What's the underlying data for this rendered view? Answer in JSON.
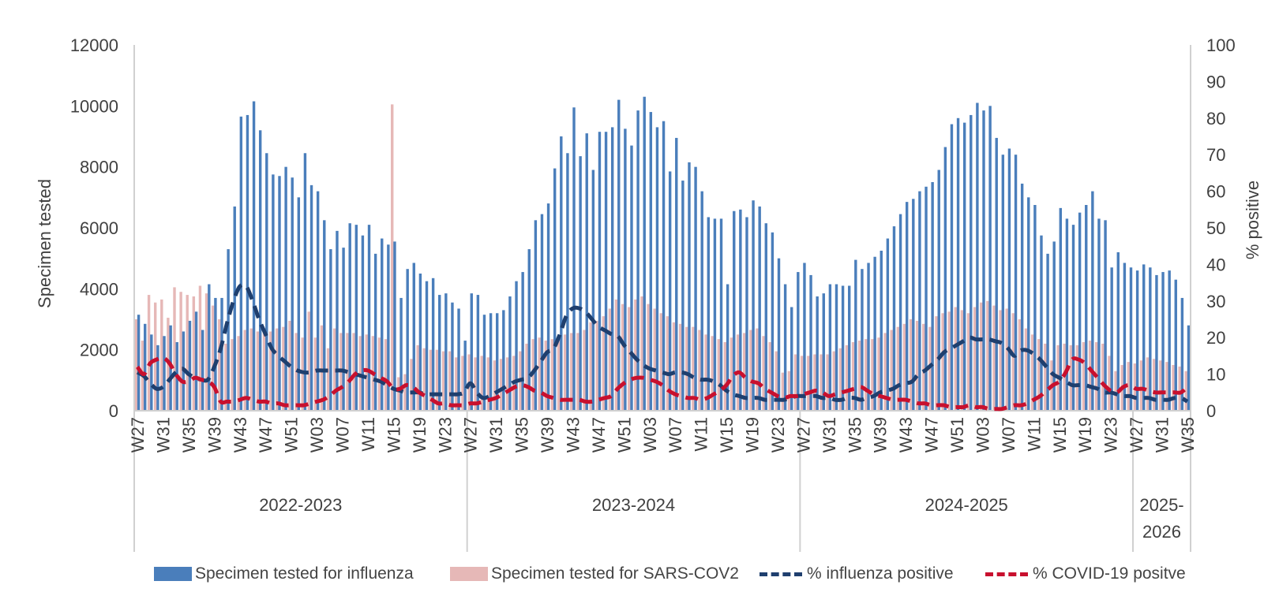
{
  "chart_data": {
    "type": "bar",
    "title": "",
    "ylabel": "Specimen tested",
    "y2label": "% positive",
    "ylim": [
      0,
      12000
    ],
    "y2lim": [
      0,
      100
    ],
    "yticks": [
      "0",
      "2000",
      "4000",
      "6000",
      "8000",
      "10000",
      "12000"
    ],
    "y2ticks": [
      "0",
      "10",
      "20",
      "30",
      "40",
      "50",
      "60",
      "70",
      "80",
      "90",
      "100"
    ],
    "grid": false,
    "legend_position": "bottom",
    "seasons": [
      {
        "label": "2022-2023",
        "weeks": [
          "W27",
          "W28",
          "W29",
          "W30",
          "W31",
          "W32",
          "W33",
          "W34",
          "W35",
          "W36",
          "W37",
          "W38",
          "W39",
          "W40",
          "W41",
          "W42",
          "W43",
          "W44",
          "W45",
          "W46",
          "W47",
          "W48",
          "W49",
          "W50",
          "W51",
          "W52",
          "W01",
          "W02",
          "W03",
          "W04",
          "W05",
          "W06",
          "W07",
          "W08",
          "W09",
          "W10",
          "W11",
          "W12",
          "W13",
          "W14",
          "W15",
          "W16",
          "W17",
          "W18",
          "W19",
          "W20",
          "W21",
          "W22",
          "W23",
          "W24",
          "W25",
          "W26"
        ]
      },
      {
        "label": "2023-2024",
        "weeks": [
          "W27",
          "W28",
          "W29",
          "W30",
          "W31",
          "W32",
          "W33",
          "W34",
          "W35",
          "W36",
          "W37",
          "W38",
          "W39",
          "W40",
          "W41",
          "W42",
          "W43",
          "W44",
          "W45",
          "W46",
          "W47",
          "W48",
          "W49",
          "W50",
          "W51",
          "W52",
          "W01",
          "W02",
          "W03",
          "W04",
          "W05",
          "W06",
          "W07",
          "W08",
          "W09",
          "W10",
          "W11",
          "W12",
          "W13",
          "W14",
          "W15",
          "W16",
          "W17",
          "W18",
          "W19",
          "W20",
          "W21",
          "W22",
          "W23",
          "W24",
          "W25",
          "W26"
        ]
      },
      {
        "label": "2024-2025",
        "weeks": [
          "W27",
          "W28",
          "W29",
          "W30",
          "W31",
          "W32",
          "W33",
          "W34",
          "W35",
          "W36",
          "W37",
          "W38",
          "W39",
          "W40",
          "W41",
          "W42",
          "W43",
          "W44",
          "W45",
          "W46",
          "W47",
          "W48",
          "W49",
          "W50",
          "W51",
          "W52",
          "W01",
          "W02",
          "W03",
          "W04",
          "W05",
          "W06",
          "W07",
          "W08",
          "W09",
          "W10",
          "W11",
          "W12",
          "W13",
          "W14",
          "W15",
          "W16",
          "W17",
          "W18",
          "W19",
          "W20",
          "W21",
          "W22",
          "W23",
          "W24",
          "W25",
          "W26"
        ]
      },
      {
        "label": "2025-2026",
        "label_lines": [
          "2025-",
          "2026"
        ],
        "weeks": [
          "W27",
          "W28",
          "W29",
          "W30",
          "W31",
          "W32",
          "W33",
          "W34",
          "W35"
        ]
      }
    ],
    "x_tick_labels": [
      "W27",
      "W31",
      "W35",
      "W39",
      "W43",
      "W47",
      "W51",
      "W03",
      "W07",
      "W11",
      "W15",
      "W19",
      "W23",
      "W27",
      "W31",
      "W35",
      "W39",
      "W43",
      "W47",
      "W51",
      "W03",
      "W07",
      "W11",
      "W15",
      "W19",
      "W23",
      "W27",
      "W31",
      "W35",
      "W39",
      "W43",
      "W47",
      "W51",
      "W03",
      "W07",
      "W11",
      "W15",
      "W19",
      "W23",
      "W27",
      "W31",
      "W35"
    ],
    "series": [
      {
        "name": "Specimen tested for influenza",
        "type": "bar",
        "axis": "left",
        "color": "#4a7ebb",
        "values": [
          3150,
          2850,
          2500,
          2150,
          2450,
          2800,
          2250,
          2600,
          2950,
          3250,
          2650,
          4150,
          3700,
          3700,
          5300,
          6700,
          9650,
          9700,
          10150,
          9200,
          8450,
          7750,
          7700,
          8000,
          7650,
          7000,
          8450,
          7400,
          7200,
          6250,
          5300,
          5900,
          5350,
          6150,
          6100,
          5750,
          6100,
          5150,
          5650,
          5450,
          5550,
          3700,
          4650,
          4850,
          4500,
          4250,
          4350,
          3800,
          3850,
          3550,
          3350,
          2300,
          3850,
          3800,
          3150,
          3200,
          3200,
          3300,
          3750,
          4250,
          4550,
          5300,
          6250,
          6450,
          6800,
          7950,
          9000,
          8450,
          9950,
          8350,
          9100,
          7900,
          9150,
          9150,
          9300,
          10200,
          9250,
          8700,
          9850,
          10300,
          9800,
          9300,
          9500,
          7850,
          8950,
          7550,
          8150,
          8000,
          7200,
          6350,
          6300,
          6300,
          4150,
          6550,
          6600,
          6350,
          6900,
          6700,
          6150,
          5850,
          5000,
          4150,
          3400,
          4550,
          4850,
          4450,
          3750,
          3850,
          4150,
          4150,
          4100,
          4100,
          4950,
          4650,
          4850,
          5050,
          5250,
          5650,
          6050,
          6450,
          6850,
          6950,
          7200,
          7350,
          7500,
          7900,
          8650,
          9400,
          9600,
          9450,
          9700,
          10100,
          9850,
          10000,
          8950,
          8400,
          8600,
          8400,
          7450,
          7000,
          6750,
          5750,
          5150,
          5550,
          6650,
          6300,
          6100,
          6500,
          6750,
          7200,
          6300,
          6250,
          4700,
          5200,
          4850,
          4700,
          4600,
          4800,
          4700,
          4450,
          4550,
          4600,
          4300,
          3700,
          2800
        ]
      },
      {
        "name": "Specimen tested for SARS-COV2",
        "type": "bar",
        "axis": "left",
        "color": "#e6b8b7",
        "values": [
          3000,
          2300,
          3800,
          3550,
          3650,
          3050,
          4050,
          3900,
          3800,
          3750,
          4100,
          3850,
          3450,
          3000,
          2200,
          2350,
          2450,
          2650,
          2700,
          2600,
          2700,
          2600,
          2700,
          2750,
          2950,
          2550,
          2400,
          3250,
          2400,
          2800,
          2050,
          2700,
          2550,
          2550,
          2550,
          2450,
          2500,
          2450,
          2400,
          2350,
          10050,
          1100,
          1200,
          1700,
          2150,
          2050,
          2000,
          2000,
          1950,
          1950,
          1750,
          1800,
          1850,
          1750,
          1800,
          1750,
          1650,
          1700,
          1750,
          1800,
          1950,
          2200,
          2350,
          2400,
          2300,
          2350,
          2450,
          2500,
          2550,
          2550,
          2650,
          2900,
          2950,
          3100,
          3350,
          3650,
          3500,
          3400,
          3650,
          3750,
          3500,
          3350,
          3200,
          3100,
          2900,
          2850,
          2750,
          2750,
          2650,
          2500,
          2450,
          2350,
          2250,
          2400,
          2500,
          2550,
          2650,
          2700,
          2450,
          2250,
          1950,
          1250,
          1300,
          1850,
          1800,
          1800,
          1850,
          1850,
          1850,
          1950,
          2050,
          2150,
          2250,
          2300,
          2350,
          2350,
          2400,
          2550,
          2650,
          2750,
          2850,
          3000,
          2950,
          2850,
          2750,
          3100,
          3200,
          3250,
          3400,
          3300,
          3200,
          3400,
          3550,
          3600,
          3450,
          3300,
          3350,
          3200,
          3000,
          2700,
          2500,
          2350,
          2200,
          1650,
          2150,
          2200,
          2150,
          2150,
          2250,
          2300,
          2250,
          2200,
          1800,
          1300,
          1500,
          1600,
          1550,
          1650,
          1750,
          1700,
          1650,
          1600,
          1500,
          1450,
          1300
        ]
      },
      {
        "name": "% influenza positive",
        "type": "line",
        "axis": "right",
        "color": "#1f3f6e",
        "values": [
          10.5,
          9.5,
          7.5,
          6,
          6.5,
          8.5,
          10.5,
          11.5,
          10,
          9,
          8.5,
          8.5,
          12,
          17,
          24,
          30,
          34,
          34,
          30,
          25,
          21,
          17,
          15,
          13.5,
          12,
          11,
          10.5,
          10.5,
          11,
          11,
          11,
          11,
          11,
          10.5,
          10,
          9.5,
          9,
          8.5,
          8,
          7,
          6,
          5.5,
          5,
          5,
          5,
          4.5,
          4.5,
          4.5,
          4.5,
          4.5,
          4.5,
          5,
          7.5,
          5,
          3.5,
          4,
          5,
          6,
          7,
          8,
          8.5,
          9,
          11,
          13.5,
          16,
          17,
          21,
          26,
          28,
          28,
          27,
          25,
          23,
          22,
          21,
          20.5,
          18,
          16,
          14,
          12.5,
          11.5,
          11,
          10.5,
          10,
          10.5,
          10.5,
          10,
          9,
          8.5,
          8.5,
          8,
          7,
          5.5,
          4.5,
          4,
          3.5,
          3.5,
          3.5,
          3,
          3,
          3,
          3,
          3.5,
          4,
          4,
          4,
          4,
          3.5,
          3.5,
          3,
          3,
          3.5,
          3.5,
          3,
          3.5,
          4,
          5,
          5.5,
          6,
          7,
          7.5,
          8,
          10,
          11,
          12.5,
          14,
          16,
          17,
          18,
          19,
          20,
          19.5,
          19.5,
          19.5,
          19,
          18.5,
          17,
          15,
          16.5,
          16.5,
          15.5,
          14,
          12,
          10,
          9,
          8,
          7,
          7,
          7,
          6.5,
          6,
          5,
          5,
          4.5,
          4,
          4,
          3.5,
          3.5,
          3.5,
          3,
          3,
          3,
          3.5,
          3.5,
          2.5
        ]
      },
      {
        "name": "% COVID-19 positve",
        "type": "line",
        "axis": "right",
        "color": "#c8102e",
        "values": [
          12,
          10,
          13,
          14,
          14.5,
          13,
          10,
          8,
          8,
          9,
          8.5,
          8,
          6.5,
          2.5,
          2.5,
          2.5,
          3,
          3.5,
          3,
          2.5,
          2.5,
          2,
          2,
          1.5,
          1.5,
          1.5,
          1.5,
          2,
          2.5,
          3,
          4,
          5.5,
          6.5,
          8,
          10,
          11,
          11,
          10,
          9,
          8,
          6,
          6,
          7,
          6.5,
          5,
          4,
          3,
          2,
          2,
          1.5,
          1.5,
          1.5,
          2,
          2,
          2.5,
          3,
          3.5,
          4.5,
          5.5,
          6.5,
          7,
          6.5,
          5.5,
          5,
          4,
          3.5,
          3,
          3,
          3,
          3,
          2.5,
          2.5,
          3,
          3.5,
          4,
          6,
          7.5,
          8.5,
          9,
          9,
          8.5,
          8,
          7,
          5.5,
          4.5,
          4,
          3.5,
          3.5,
          3,
          3.5,
          4.5,
          5.5,
          7,
          9.5,
          10.5,
          9,
          8,
          7.5,
          6,
          5,
          4,
          3.5,
          4,
          4,
          4.5,
          5,
          5.5,
          5,
          4,
          4.5,
          5,
          5.5,
          6,
          6.5,
          5.5,
          4.5,
          4,
          3.5,
          3,
          3,
          3,
          2.5,
          2,
          2,
          1.5,
          1.5,
          1.5,
          1,
          1,
          1,
          1.5,
          1,
          1,
          0.5,
          0.5,
          0.5,
          1,
          1.5,
          1.5,
          2,
          3,
          4,
          5.5,
          7,
          8,
          10.5,
          14,
          14,
          13,
          11,
          9,
          7,
          5.5,
          5,
          6.5,
          7,
          6,
          6,
          5.5,
          5,
          5,
          5,
          5,
          5,
          6.5
        ]
      }
    ]
  }
}
